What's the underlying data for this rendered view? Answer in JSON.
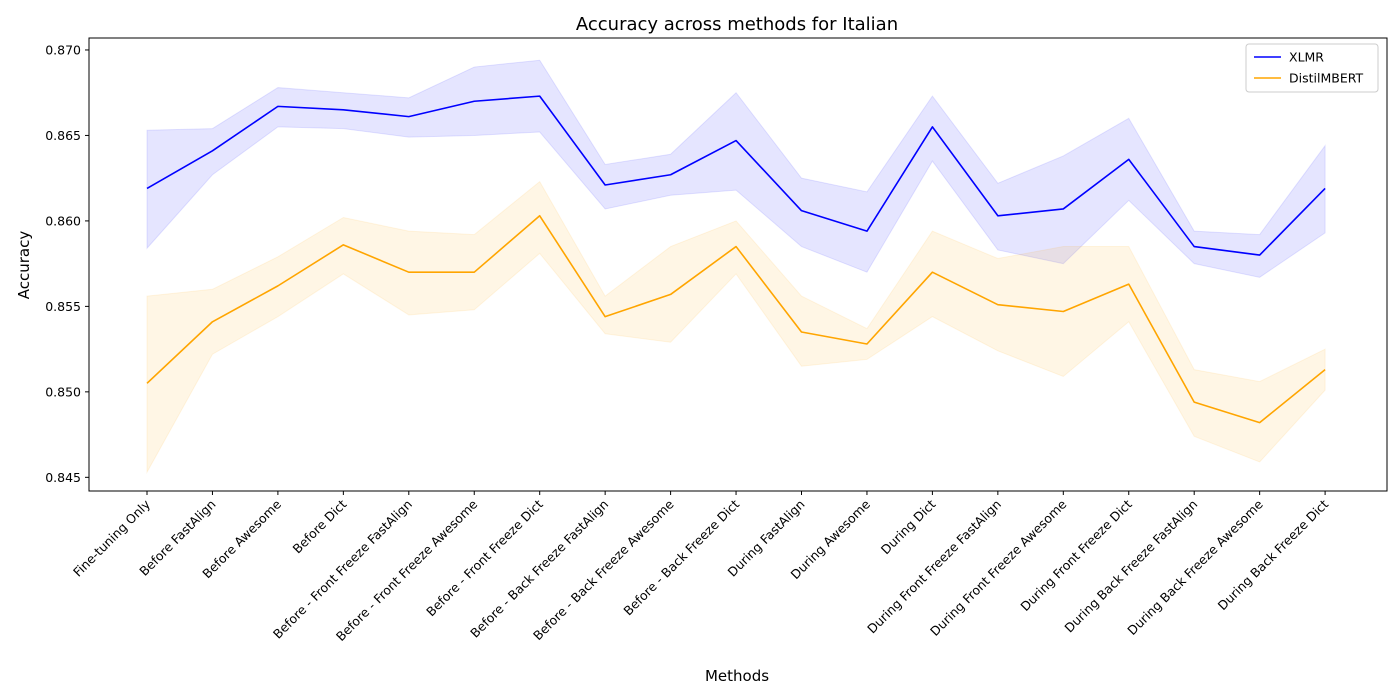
{
  "chart_data": {
    "type": "line",
    "title": "Accuracy across methods for Italian",
    "xlabel": "Methods",
    "ylabel": "Accuracy",
    "ylim": [
      0.8442,
      0.8707
    ],
    "yticks": [
      0.845,
      0.85,
      0.855,
      0.86,
      0.865,
      0.87
    ],
    "ytick_labels": [
      "0.845",
      "0.850",
      "0.855",
      "0.860",
      "0.865",
      "0.870"
    ],
    "grid": false,
    "legend_position": "top-right",
    "categories": [
      "Fine-tuning Only",
      "Before FastAlign",
      "Before Awesome",
      "Before Dict",
      "Before - Front Freeze FastAlign",
      "Before - Front Freeze Awesome",
      "Before - Front Freeze Dict",
      "Before - Back Freeze FastAlign",
      "Before - Back Freeze Awesome",
      "Before - Back Freeze Dict",
      "During FastAlign",
      "During Awesome",
      "During Dict",
      "During Front Freeze FastAlign",
      "During Front Freeze Awesome",
      "During Front Freeze Dict",
      "During Back Freeze FastAlign",
      "During Back Freeze Awesome",
      "During Back Freeze Dict"
    ],
    "series": [
      {
        "name": "XLMR",
        "color": "#0000ff",
        "band_color": "#0000ff",
        "values": [
          0.8619,
          0.8641,
          0.8667,
          0.8665,
          0.8661,
          0.867,
          0.8673,
          0.8621,
          0.8627,
          0.8647,
          0.8606,
          0.8594,
          0.8655,
          0.8603,
          0.8607,
          0.8636,
          0.8585,
          0.858,
          0.8619
        ],
        "lower": [
          0.8584,
          0.8627,
          0.8655,
          0.8654,
          0.8649,
          0.865,
          0.8652,
          0.8607,
          0.8615,
          0.8618,
          0.8585,
          0.857,
          0.8635,
          0.8583,
          0.8575,
          0.8612,
          0.8575,
          0.8567,
          0.8593
        ],
        "upper": [
          0.8653,
          0.8654,
          0.8678,
          0.8675,
          0.8672,
          0.869,
          0.8694,
          0.8633,
          0.8639,
          0.8675,
          0.8625,
          0.8617,
          0.8673,
          0.8622,
          0.8638,
          0.866,
          0.8594,
          0.8592,
          0.8644
        ]
      },
      {
        "name": "DistilMBERT",
        "color": "#ffa500",
        "band_color": "#ffa500",
        "values": [
          0.8505,
          0.8541,
          0.8562,
          0.8586,
          0.857,
          0.857,
          0.8603,
          0.8544,
          0.8557,
          0.8585,
          0.8535,
          0.8528,
          0.857,
          0.8551,
          0.8547,
          0.8563,
          0.8494,
          0.8482,
          0.8513
        ],
        "lower": [
          0.8453,
          0.8522,
          0.8544,
          0.8569,
          0.8545,
          0.8548,
          0.8581,
          0.8534,
          0.8529,
          0.8569,
          0.8515,
          0.8519,
          0.8544,
          0.8524,
          0.8509,
          0.8541,
          0.8474,
          0.8459,
          0.8501
        ],
        "upper": [
          0.8556,
          0.856,
          0.8579,
          0.8602,
          0.8594,
          0.8592,
          0.8623,
          0.8556,
          0.8585,
          0.86,
          0.8556,
          0.8537,
          0.8594,
          0.8578,
          0.8585,
          0.8585,
          0.8513,
          0.8506,
          0.8525
        ]
      }
    ]
  }
}
